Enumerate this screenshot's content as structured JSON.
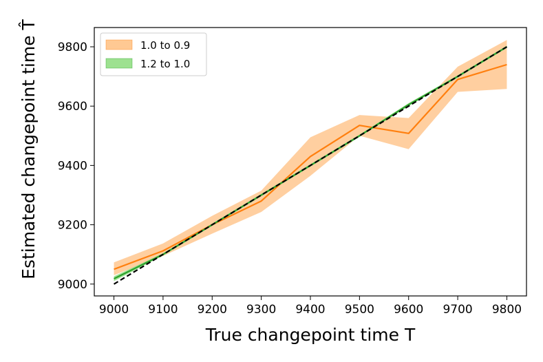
{
  "chart_data": {
    "type": "line",
    "xlabel": "True changepoint time T",
    "ylabel": "Estimated changepoint time T̂",
    "xlim": [
      8960,
      9840
    ],
    "ylim": [
      8960,
      9865
    ],
    "x_ticks": [
      9000,
      9100,
      9200,
      9300,
      9400,
      9500,
      9600,
      9700,
      9800
    ],
    "y_ticks": [
      9000,
      9200,
      9400,
      9600,
      9800
    ],
    "grid": false,
    "legend_position": "top-left",
    "x": [
      9000,
      9100,
      9200,
      9300,
      9400,
      9500,
      9600,
      9700,
      9800
    ],
    "series": [
      {
        "name": "1.0 to 0.9",
        "color": "#ff7f0e",
        "band_color": "#ffbb78",
        "values": [
          9050,
          9112,
          9200,
          9280,
          9430,
          9535,
          9508,
          9690,
          9740
        ],
        "lower": [
          9030,
          9095,
          9170,
          9243,
          9365,
          9500,
          9455,
          9648,
          9658
        ],
        "upper": [
          9073,
          9137,
          9230,
          9315,
          9495,
          9570,
          9560,
          9733,
          9823
        ]
      },
      {
        "name": "1.2 to 1.0",
        "color": "#2ca02c",
        "band_color": "#98df8a",
        "values": [
          9018,
          9100,
          9200,
          9300,
          9400,
          9500,
          9605,
          9700,
          9800
        ],
        "lower": [
          9010,
          9096,
          9196,
          9296,
          9396,
          9496,
          9600,
          9696,
          9796
        ],
        "upper": [
          9026,
          9104,
          9204,
          9304,
          9404,
          9504,
          9610,
          9704,
          9804
        ]
      }
    ],
    "reference_line": {
      "style": "dashed",
      "color": "#000000",
      "x": [
        9000,
        9800
      ],
      "y": [
        9000,
        9800
      ]
    }
  }
}
